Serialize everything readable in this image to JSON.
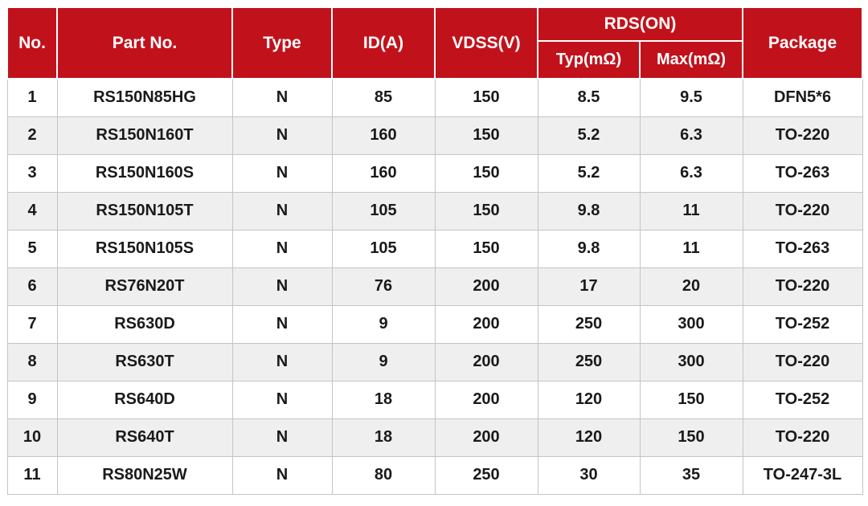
{
  "colors": {
    "header_bg": "#C1121C",
    "header_text": "#FFFFFF",
    "row_bg": "#FFFFFF",
    "row_alt_bg": "#EFEFEF",
    "body_text": "#1A1A1A",
    "border": "#C4C4C4"
  },
  "table": {
    "header": {
      "no": "No.",
      "part_no": "Part No.",
      "type": "Type",
      "id_a": "ID(A)",
      "vdss": "VDSS(V)",
      "rds_on": "RDS(ON)",
      "rds_typ": "Typ(mΩ)",
      "rds_max": "Max(mΩ)",
      "package": "Package"
    },
    "rows": [
      [
        "1",
        "RS150N85HG",
        "N",
        "85",
        "150",
        "8.5",
        "9.5",
        "DFN5*6"
      ],
      [
        "2",
        "RS150N160T",
        "N",
        "160",
        "150",
        "5.2",
        "6.3",
        "TO-220"
      ],
      [
        "3",
        "RS150N160S",
        "N",
        "160",
        "150",
        "5.2",
        "6.3",
        "TO-263"
      ],
      [
        "4",
        "RS150N105T",
        "N",
        "105",
        "150",
        "9.8",
        "11",
        "TO-220"
      ],
      [
        "5",
        "RS150N105S",
        "N",
        "105",
        "150",
        "9.8",
        "11",
        "TO-263"
      ],
      [
        "6",
        "RS76N20T",
        "N",
        "76",
        "200",
        "17",
        "20",
        "TO-220"
      ],
      [
        "7",
        "RS630D",
        "N",
        "9",
        "200",
        "250",
        "300",
        "TO-252"
      ],
      [
        "8",
        "RS630T",
        "N",
        "9",
        "200",
        "250",
        "300",
        "TO-220"
      ],
      [
        "9",
        "RS640D",
        "N",
        "18",
        "200",
        "120",
        "150",
        "TO-252"
      ],
      [
        "10",
        "RS640T",
        "N",
        "18",
        "200",
        "120",
        "150",
        "TO-220"
      ],
      [
        "11",
        "RS80N25W",
        "N",
        "80",
        "250",
        "30",
        "35",
        "TO-247-3L"
      ]
    ]
  }
}
